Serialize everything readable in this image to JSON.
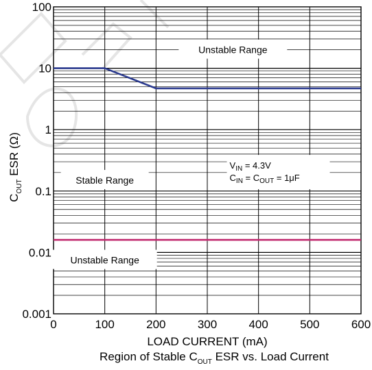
{
  "chart_data": {
    "type": "line",
    "caption": "Region of Stable C",
    "caption_sub": "OUT",
    "caption_tail": " ESR vs. Load Current",
    "xlabel": "LOAD CURRENT (mA)",
    "ylabel_main": "C",
    "ylabel_sub": "OUT",
    "ylabel_tail": " ESR (Ω)",
    "x_ticks": [
      "0",
      "100",
      "200",
      "300",
      "400",
      "500",
      "600"
    ],
    "y_ticks": [
      "0.001",
      "0.01",
      "0.1",
      "1",
      "10",
      "100"
    ],
    "xlim": [
      0,
      600
    ],
    "ylim": [
      0.001,
      100
    ],
    "y_scale": "log",
    "grid": true,
    "series": [
      {
        "color": "#2b3a8f",
        "x": [
          0,
          100,
          200,
          600
        ],
        "y": [
          10,
          10,
          4.7,
          4.7
        ]
      },
      {
        "color": "#c0286e",
        "x": [
          0,
          600
        ],
        "y": [
          0.016,
          0.016
        ]
      }
    ],
    "annotations": {
      "upper_region": {
        "text": "Unstable Range",
        "x": 350,
        "y": 20
      },
      "middle_region": {
        "text": "Stable Range",
        "x": 100,
        "y": 0.15
      },
      "lower_region": {
        "text": "Unstable Range",
        "x": 100,
        "y": 0.0075
      },
      "conditions": {
        "line1_v": "V",
        "line1_sub": "IN",
        "line1_tail": " = 4.3V",
        "line2_c1": "C",
        "line2_sub1": "IN",
        "line2_mid": " = C",
        "line2_sub2": "OUT",
        "line2_tail": " = 1μF",
        "x": 440,
        "y": 0.22
      }
    }
  }
}
